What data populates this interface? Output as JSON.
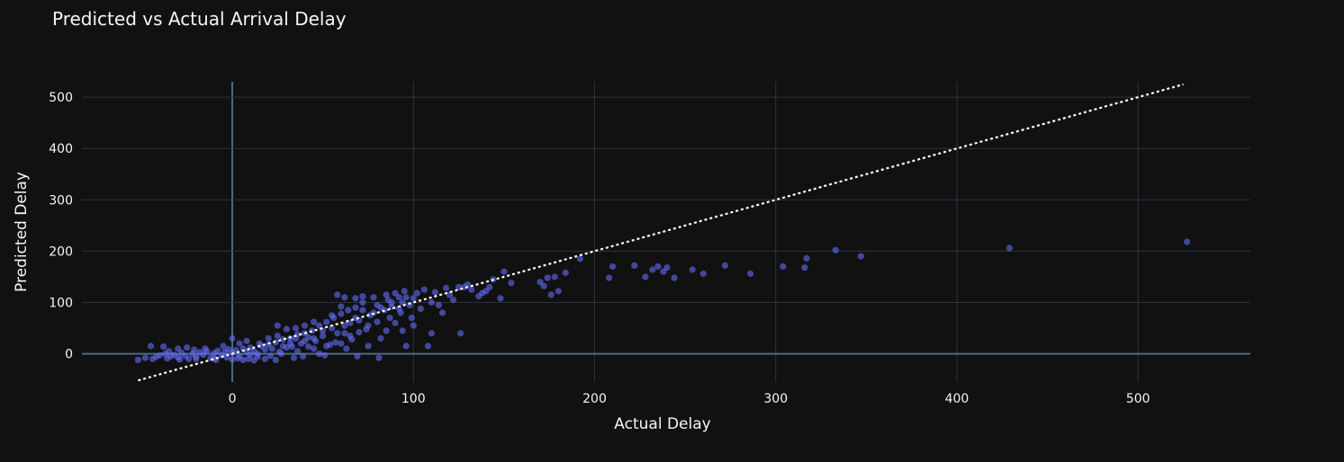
{
  "chart_data": {
    "type": "scatter",
    "title": "Predicted vs Actual Arrival Delay",
    "xlabel": "Actual Delay",
    "ylabel": "Predicted Delay",
    "xlim": [
      -83,
      562
    ],
    "ylim": [
      -55,
      530
    ],
    "xticks": [
      0,
      100,
      200,
      300,
      400,
      500
    ],
    "yticks": [
      0,
      100,
      200,
      300,
      400,
      500
    ],
    "grid": true,
    "colors": {
      "background": "#111111",
      "points": "#636efa",
      "reference_line": "#ffffff",
      "grid": "#283442",
      "zero_line": "#506784",
      "text": "#f2f5fa"
    },
    "reference_line": {
      "style": "dotted",
      "points": [
        [
          -52,
          -52
        ],
        [
          525,
          525
        ]
      ]
    },
    "series": [
      {
        "points": [
          [
            -52,
            -12
          ],
          [
            -48,
            -8
          ],
          [
            -45,
            15
          ],
          [
            -42,
            -6
          ],
          [
            -40,
            -3
          ],
          [
            -38,
            14
          ],
          [
            -36,
            -9
          ],
          [
            -34,
            -5
          ],
          [
            -32,
            -2
          ],
          [
            -30,
            -7
          ],
          [
            -28,
            2
          ],
          [
            -26,
            -4
          ],
          [
            -24,
            -10
          ],
          [
            -22,
            0
          ],
          [
            -20,
            -6
          ],
          [
            -18,
            3
          ],
          [
            -16,
            -2
          ],
          [
            -14,
            5
          ],
          [
            -12,
            -8
          ],
          [
            -10,
            1
          ],
          [
            -8,
            6
          ],
          [
            -6,
            -3
          ],
          [
            -4,
            4
          ],
          [
            -2,
            9
          ],
          [
            0,
            2
          ],
          [
            2,
            7
          ],
          [
            4,
            -4
          ],
          [
            6,
            10
          ],
          [
            8,
            3
          ],
          [
            10,
            12
          ],
          [
            12,
            5
          ],
          [
            14,
            -6
          ],
          [
            16,
            15
          ],
          [
            18,
            8
          ],
          [
            20,
            18
          ],
          [
            22,
            10
          ],
          [
            24,
            22
          ],
          [
            26,
            4
          ],
          [
            28,
            28
          ],
          [
            30,
            12
          ],
          [
            32,
            30
          ],
          [
            34,
            -8
          ],
          [
            36,
            38
          ],
          [
            38,
            20
          ],
          [
            40,
            40
          ],
          [
            42,
            14
          ],
          [
            44,
            45
          ],
          [
            46,
            25
          ],
          [
            48,
            55
          ],
          [
            50,
            35
          ],
          [
            52,
            62
          ],
          [
            54,
            18
          ],
          [
            56,
            70
          ],
          [
            58,
            40
          ],
          [
            60,
            78
          ],
          [
            62,
            55
          ],
          [
            64,
            85
          ],
          [
            66,
            28
          ],
          [
            68,
            90
          ],
          [
            70,
            65
          ],
          [
            72,
            100
          ],
          [
            74,
            48
          ],
          [
            76,
            75
          ],
          [
            78,
            80
          ],
          [
            80,
            95
          ],
          [
            82,
            30
          ],
          [
            84,
            85
          ],
          [
            86,
            105
          ],
          [
            88,
            92
          ],
          [
            90,
            60
          ],
          [
            92,
            110
          ],
          [
            94,
            100
          ],
          [
            96,
            15
          ],
          [
            98,
            95
          ],
          [
            100,
            108
          ],
          [
            104,
            88
          ],
          [
            108,
            15
          ],
          [
            112,
            120
          ],
          [
            116,
            80
          ],
          [
            118,
            128
          ],
          [
            122,
            105
          ],
          [
            126,
            40
          ],
          [
            128,
            130
          ],
          [
            132,
            125
          ],
          [
            136,
            112
          ],
          [
            140,
            122
          ],
          [
            144,
            145
          ],
          [
            148,
            108
          ],
          [
            150,
            160
          ],
          [
            154,
            138
          ],
          [
            170,
            140
          ],
          [
            172,
            132
          ],
          [
            174,
            148
          ],
          [
            176,
            115
          ],
          [
            178,
            150
          ],
          [
            180,
            122
          ],
          [
            184,
            158
          ],
          [
            192,
            185
          ],
          [
            208,
            148
          ],
          [
            210,
            170
          ],
          [
            222,
            172
          ],
          [
            228,
            150
          ],
          [
            232,
            164
          ],
          [
            235,
            170
          ],
          [
            238,
            160
          ],
          [
            240,
            168
          ],
          [
            244,
            148
          ],
          [
            254,
            164
          ],
          [
            260,
            156
          ],
          [
            272,
            172
          ],
          [
            286,
            156
          ],
          [
            304,
            170
          ],
          [
            316,
            168
          ],
          [
            317,
            186
          ],
          [
            333,
            202
          ],
          [
            347,
            190
          ],
          [
            429,
            206
          ],
          [
            527,
            218
          ],
          [
            -44,
            -10
          ],
          [
            -37,
            0
          ],
          [
            -29,
            -11
          ],
          [
            -21,
            8
          ],
          [
            -15,
            10
          ],
          [
            -9,
            -12
          ],
          [
            -3,
            -7
          ],
          [
            3,
            -9
          ],
          [
            9,
            -10
          ],
          [
            15,
            20
          ],
          [
            21,
            -4
          ],
          [
            27,
            0
          ],
          [
            33,
            14
          ],
          [
            39,
            -5
          ],
          [
            45,
            10
          ],
          [
            51,
            -3
          ],
          [
            57,
            22
          ],
          [
            63,
            10
          ],
          [
            69,
            -5
          ],
          [
            75,
            15
          ],
          [
            81,
            -8
          ],
          [
            87,
            70
          ],
          [
            93,
            80
          ],
          [
            99,
            70
          ],
          [
            25,
            55
          ],
          [
            30,
            48
          ],
          [
            35,
            30
          ],
          [
            42,
            32
          ],
          [
            55,
            50
          ],
          [
            60,
            92
          ],
          [
            65,
            60
          ],
          [
            58,
            115
          ],
          [
            62,
            110
          ],
          [
            68,
            108
          ],
          [
            72,
            112
          ],
          [
            78,
            110
          ],
          [
            85,
            115
          ],
          [
            90,
            118
          ],
          [
            95,
            122
          ],
          [
            110,
            100
          ],
          [
            120,
            115
          ],
          [
            125,
            130
          ],
          [
            130,
            135
          ],
          [
            138,
            118
          ],
          [
            142,
            130
          ],
          [
            60,
            20
          ],
          [
            65,
            35
          ],
          [
            70,
            42
          ],
          [
            75,
            55
          ],
          [
            80,
            62
          ],
          [
            85,
            45
          ],
          [
            18,
            -10
          ],
          [
            24,
            -12
          ],
          [
            36,
            5
          ],
          [
            48,
            0
          ],
          [
            52,
            15
          ],
          [
            -30,
            10
          ],
          [
            -25,
            12
          ],
          [
            -35,
            5
          ],
          [
            -20,
            -10
          ],
          [
            -10,
            -9
          ],
          [
            0,
            -11
          ],
          [
            6,
            -12
          ],
          [
            12,
            -13
          ],
          [
            40,
            25
          ],
          [
            45,
            30
          ],
          [
            50,
            45
          ],
          [
            28,
            15
          ],
          [
            32,
            20
          ],
          [
            10,
            -2
          ],
          [
            14,
            0
          ],
          [
            4,
            20
          ],
          [
            8,
            25
          ],
          [
            -5,
            15
          ],
          [
            0,
            30
          ],
          [
            20,
            30
          ],
          [
            25,
            35
          ],
          [
            35,
            50
          ],
          [
            40,
            55
          ],
          [
            45,
            62
          ],
          [
            55,
            75
          ],
          [
            62,
            40
          ],
          [
            68,
            70
          ],
          [
            72,
            85
          ],
          [
            82,
            90
          ],
          [
            88,
            100
          ],
          [
            92,
            88
          ],
          [
            96,
            110
          ],
          [
            102,
            118
          ],
          [
            106,
            125
          ],
          [
            114,
            95
          ],
          [
            100,
            55
          ],
          [
            94,
            45
          ],
          [
            110,
            40
          ]
        ]
      }
    ]
  }
}
